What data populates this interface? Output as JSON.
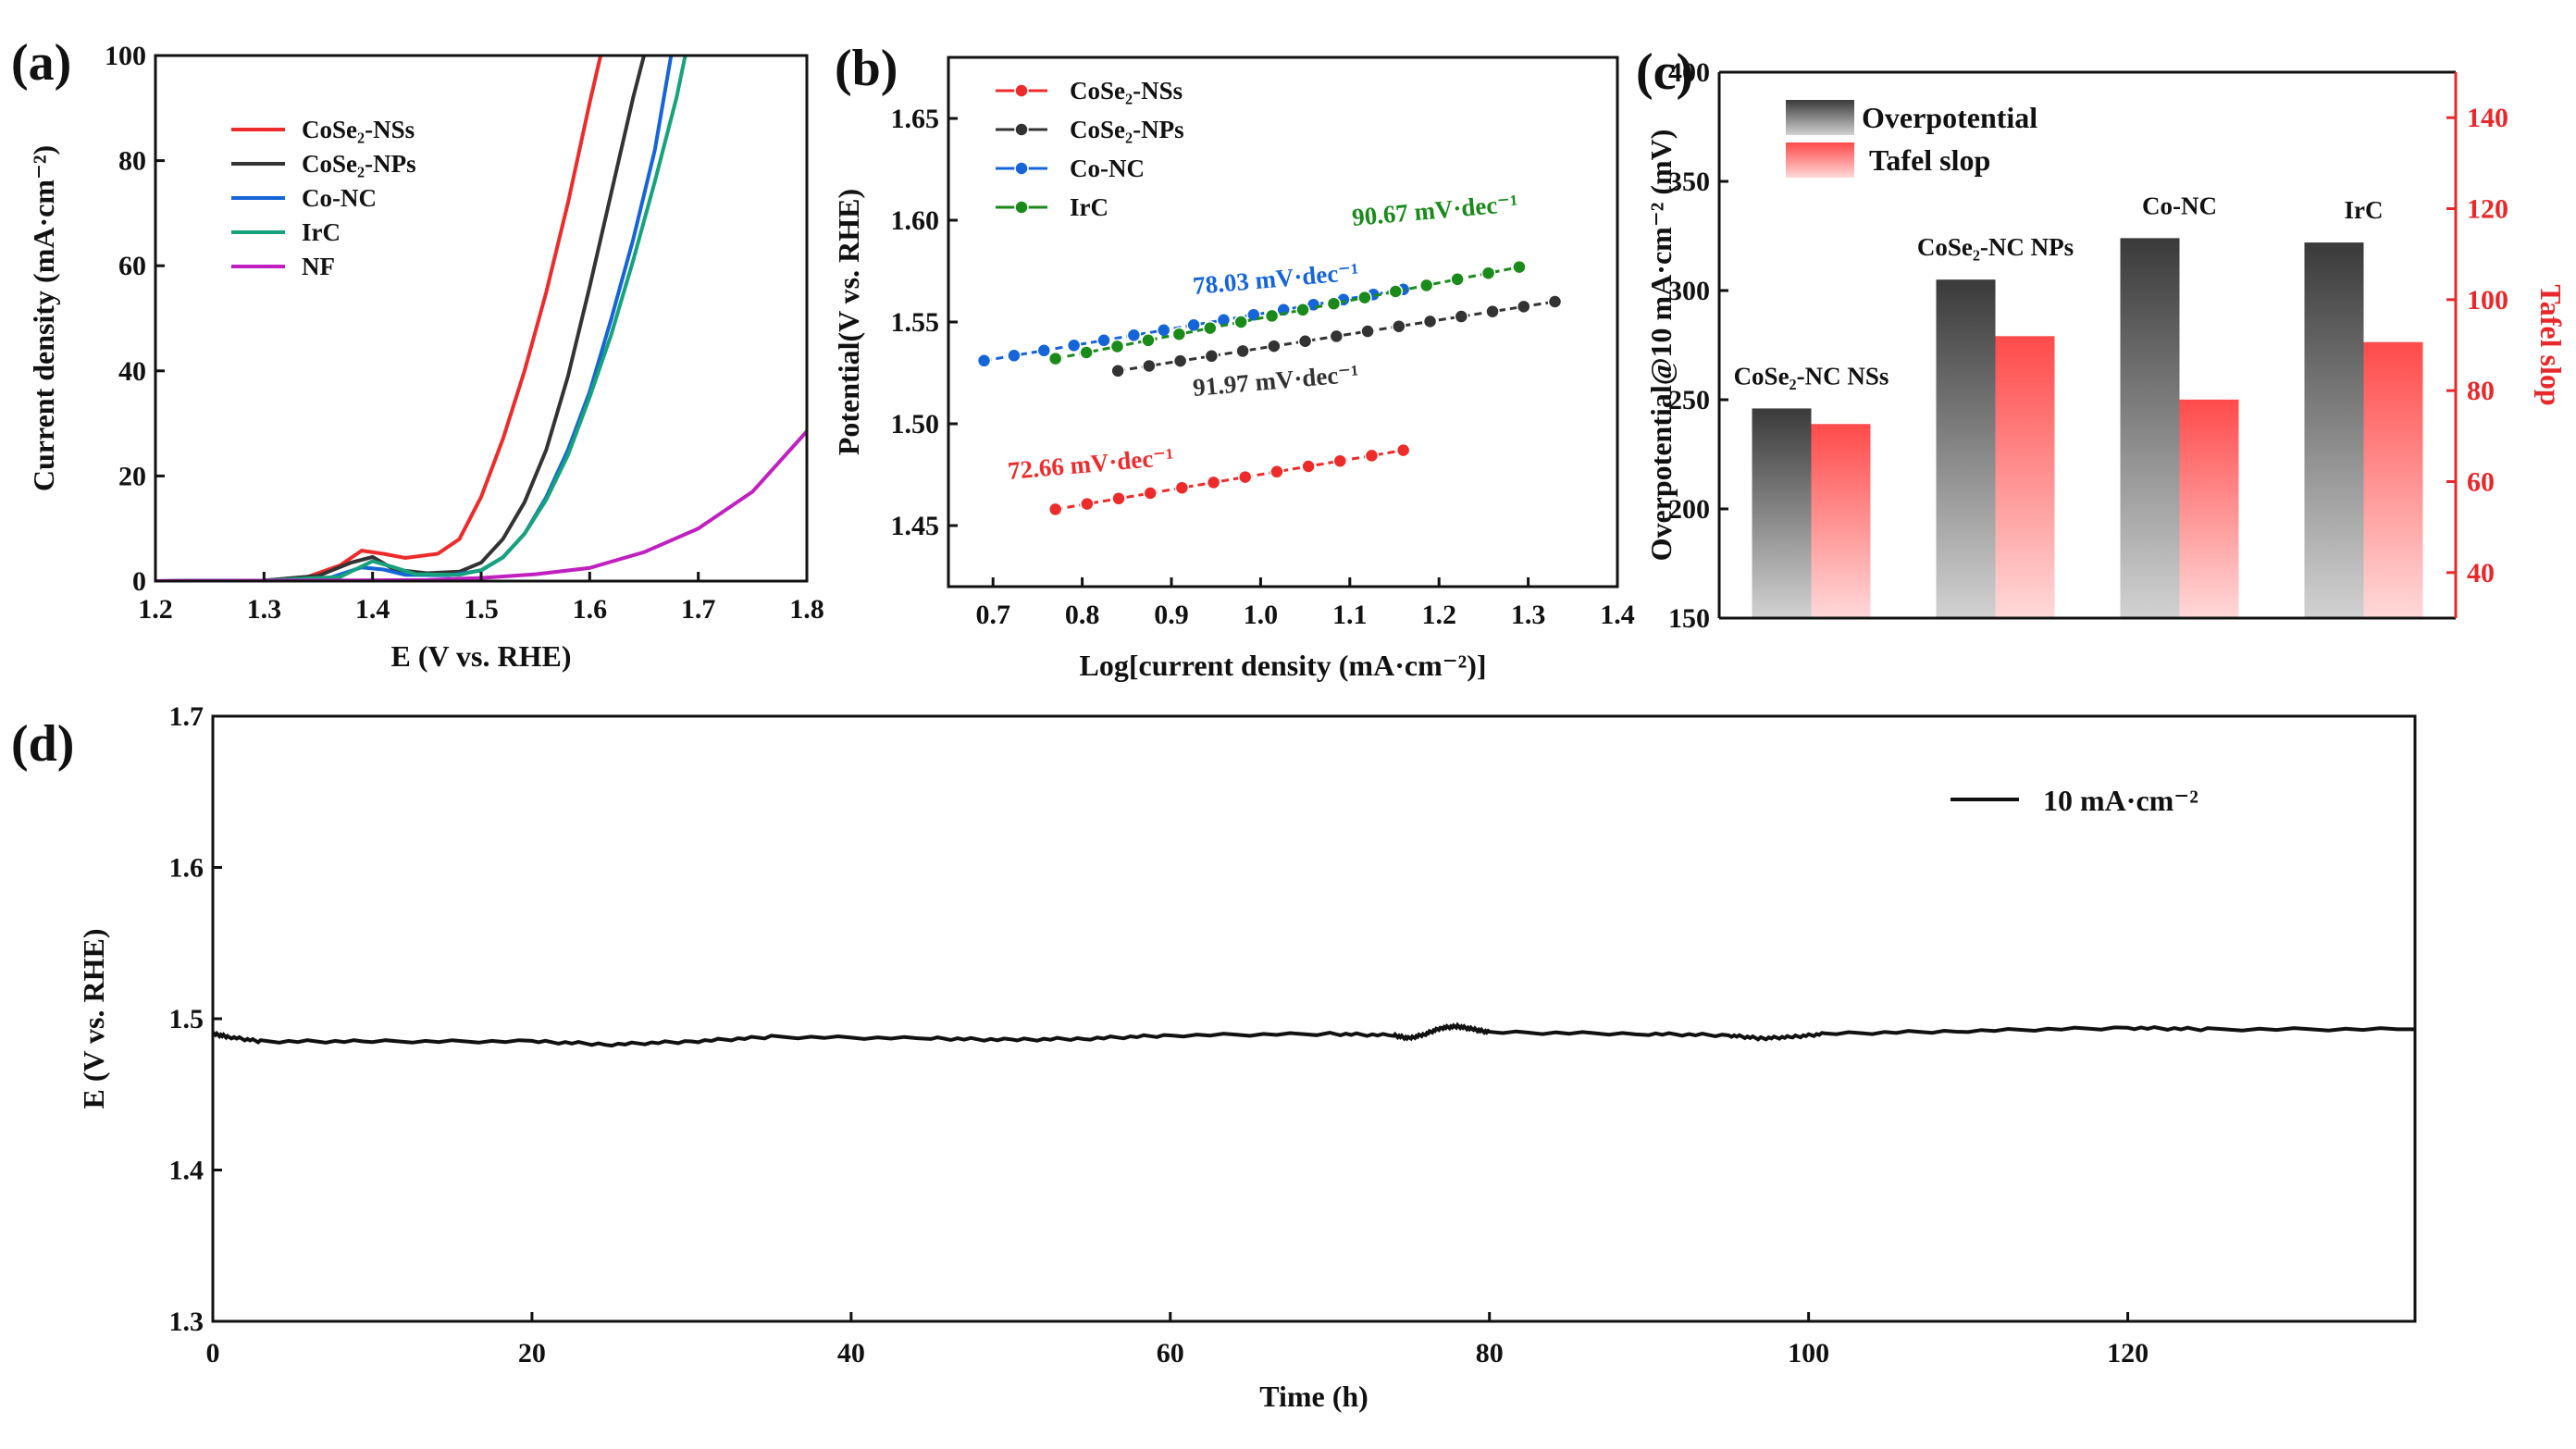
{
  "colors": {
    "cose2_nss": "#ee2b2b",
    "cose2_nps": "#333333",
    "co_nc": "#1565d8",
    "irc": "#16a37c",
    "irc_tafel": "#1a8a1a",
    "nf": "#c020c0",
    "tafel_bar": "#ff4a4a",
    "axis_right": "#e8282a"
  },
  "chart_data": [
    {
      "id": "a",
      "panel_label": "(a)",
      "type": "line",
      "xlabel": "E (V vs. RHE)",
      "ylabel": "Current density (mA·cm⁻²)",
      "xlim": [
        1.2,
        1.8
      ],
      "ylim": [
        0,
        100
      ],
      "x_ticks": [
        "1.2",
        "1.3",
        "1.4",
        "1.5",
        "1.6",
        "1.7",
        "1.8"
      ],
      "y_ticks": [
        "0",
        "20",
        "40",
        "60",
        "80",
        "100"
      ],
      "series": [
        {
          "name": "CoSe₂-NSs",
          "color_key": "cose2_nss",
          "points": [
            [
              1.2,
              0
            ],
            [
              1.3,
              0.1
            ],
            [
              1.34,
              0.8
            ],
            [
              1.37,
              3
            ],
            [
              1.39,
              5.8
            ],
            [
              1.41,
              5.2
            ],
            [
              1.43,
              4.4
            ],
            [
              1.46,
              5.2
            ],
            [
              1.48,
              8
            ],
            [
              1.5,
              16
            ],
            [
              1.52,
              27
            ],
            [
              1.54,
              40
            ],
            [
              1.56,
              55
            ],
            [
              1.58,
              72
            ],
            [
              1.6,
              91
            ],
            [
              1.61,
              100
            ]
          ]
        },
        {
          "name": "CoSe₂-NPs",
          "color_key": "cose2_nps",
          "points": [
            [
              1.2,
              0
            ],
            [
              1.3,
              0.1
            ],
            [
              1.35,
              1
            ],
            [
              1.38,
              3.5
            ],
            [
              1.4,
              4.6
            ],
            [
              1.42,
              2.2
            ],
            [
              1.45,
              1.5
            ],
            [
              1.48,
              1.8
            ],
            [
              1.5,
              3.5
            ],
            [
              1.52,
              8
            ],
            [
              1.54,
              15
            ],
            [
              1.56,
              25
            ],
            [
              1.58,
              39
            ],
            [
              1.6,
              56
            ],
            [
              1.62,
              74
            ],
            [
              1.64,
              92
            ],
            [
              1.65,
              100
            ]
          ]
        },
        {
          "name": "Co-NC",
          "color_key": "co_nc",
          "points": [
            [
              1.2,
              0
            ],
            [
              1.3,
              0.1
            ],
            [
              1.36,
              0.6
            ],
            [
              1.39,
              2.6
            ],
            [
              1.41,
              2.2
            ],
            [
              1.43,
              1.2
            ],
            [
              1.47,
              1.1
            ],
            [
              1.5,
              2
            ],
            [
              1.52,
              4.5
            ],
            [
              1.54,
              9
            ],
            [
              1.56,
              16
            ],
            [
              1.58,
              25
            ],
            [
              1.6,
              36
            ],
            [
              1.62,
              50
            ],
            [
              1.64,
              65
            ],
            [
              1.66,
              82
            ],
            [
              1.675,
              100
            ]
          ]
        },
        {
          "name": "IrC",
          "color_key": "irc",
          "points": [
            [
              1.2,
              0
            ],
            [
              1.3,
              0.1
            ],
            [
              1.37,
              0.8
            ],
            [
              1.4,
              3.8
            ],
            [
              1.42,
              2.6
            ],
            [
              1.44,
              1.3
            ],
            [
              1.48,
              1.2
            ],
            [
              1.5,
              2.1
            ],
            [
              1.52,
              4.5
            ],
            [
              1.54,
              9
            ],
            [
              1.56,
              15.5
            ],
            [
              1.58,
              24
            ],
            [
              1.6,
              35
            ],
            [
              1.62,
              47
            ],
            [
              1.64,
              61
            ],
            [
              1.66,
              76
            ],
            [
              1.68,
              92
            ],
            [
              1.688,
              100
            ]
          ]
        },
        {
          "name": "NF",
          "color_key": "nf",
          "points": [
            [
              1.2,
              0
            ],
            [
              1.45,
              0.2
            ],
            [
              1.5,
              0.6
            ],
            [
              1.55,
              1.3
            ],
            [
              1.6,
              2.5
            ],
            [
              1.65,
              5.5
            ],
            [
              1.7,
              10
            ],
            [
              1.75,
              17
            ],
            [
              1.8,
              28.5
            ]
          ]
        }
      ]
    },
    {
      "id": "b",
      "panel_label": "(b)",
      "type": "scatter",
      "xlabel": "Log[current density (mA·cm⁻²)]",
      "ylabel": "Potential(V vs. RHE)",
      "xlim": [
        0.65,
        1.4
      ],
      "ylim": [
        1.42,
        1.68
      ],
      "x_ticks": [
        "0.7",
        "0.8",
        "0.9",
        "1.0",
        "1.1",
        "1.2",
        "1.3",
        "1.4"
      ],
      "y_ticks": [
        "1.45",
        "1.50",
        "1.55",
        "1.60",
        "1.65"
      ],
      "series": [
        {
          "name": "CoSe₂-NSs",
          "color_key": "cose2_nss",
          "x_range": [
            0.77,
            1.16
          ],
          "y_range": [
            1.458,
            1.487
          ],
          "n": 12,
          "slope_label": "72.66 mV·dec⁻¹"
        },
        {
          "name": "CoSe₂-NPs",
          "color_key": "cose2_nps",
          "x_range": [
            0.84,
            1.33
          ],
          "y_range": [
            1.526,
            1.56
          ],
          "n": 15,
          "slope_label": "91.97 mV·dec⁻¹"
        },
        {
          "name": "Co-NC",
          "color_key": "co_nc",
          "x_range": [
            0.69,
            1.16
          ],
          "y_range": [
            1.531,
            1.566
          ],
          "n": 15,
          "slope_label": "78.03 mV·dec⁻¹"
        },
        {
          "name": "IrC",
          "color_key": "irc_tafel",
          "x_range": [
            0.77,
            1.29
          ],
          "y_range": [
            1.532,
            1.577
          ],
          "n": 16,
          "slope_label": "90.67 mV·dec⁻¹"
        }
      ]
    },
    {
      "id": "c",
      "panel_label": "(c)",
      "type": "bar",
      "categories": [
        "CoSe₂-NC NSs",
        "CoSe₂-NC NPs",
        "Co-NC",
        "IrC"
      ],
      "series": [
        {
          "name": "Overpotential",
          "axis": "left",
          "values": [
            246,
            305,
            324,
            322
          ]
        },
        {
          "name": "Tafel slop",
          "axis": "right",
          "values": [
            72.66,
            91.97,
            78.03,
            90.67
          ]
        }
      ],
      "ylabel": "Overpotential@10 mA·cm⁻² (mV)",
      "ylabel_right": "Tafel slop",
      "ylim": [
        150,
        400
      ],
      "ylim_right": [
        30,
        150
      ],
      "y_ticks": [
        "150",
        "200",
        "250",
        "300",
        "350",
        "400"
      ],
      "y_ticks_right": [
        "40",
        "60",
        "80",
        "100",
        "120",
        "140"
      ]
    },
    {
      "id": "d",
      "panel_label": "(d)",
      "type": "line",
      "xlabel": "Time (h)",
      "ylabel": "E (V vs. RHE)",
      "xlim": [
        0,
        138
      ],
      "ylim": [
        1.3,
        1.7
      ],
      "x_ticks": [
        "0",
        "20",
        "40",
        "60",
        "80",
        "100",
        "120"
      ],
      "y_ticks": [
        "1.3",
        "1.4",
        "1.5",
        "1.6",
        "1.7"
      ],
      "series": [
        {
          "name": "10 mA·cm⁻²",
          "points": [
            [
              0,
              1.49
            ],
            [
              1,
              1.488
            ],
            [
              3,
              1.485
            ],
            [
              10,
              1.485
            ],
            [
              20,
              1.485
            ],
            [
              25,
              1.483
            ],
            [
              30,
              1.485
            ],
            [
              35,
              1.488
            ],
            [
              45,
              1.487
            ],
            [
              50,
              1.486
            ],
            [
              55,
              1.487
            ],
            [
              60,
              1.489
            ],
            [
              70,
              1.49
            ],
            [
              74,
              1.489
            ],
            [
              75,
              1.487
            ],
            [
              76,
              1.49
            ],
            [
              77,
              1.494
            ],
            [
              78,
              1.495
            ],
            [
              79,
              1.493
            ],
            [
              80,
              1.491
            ],
            [
              90,
              1.49
            ],
            [
              95,
              1.489
            ],
            [
              97,
              1.487
            ],
            [
              99,
              1.488
            ],
            [
              101,
              1.49
            ],
            [
              110,
              1.492
            ],
            [
              120,
              1.494
            ],
            [
              125,
              1.493
            ],
            [
              138,
              1.493
            ]
          ]
        }
      ]
    }
  ]
}
